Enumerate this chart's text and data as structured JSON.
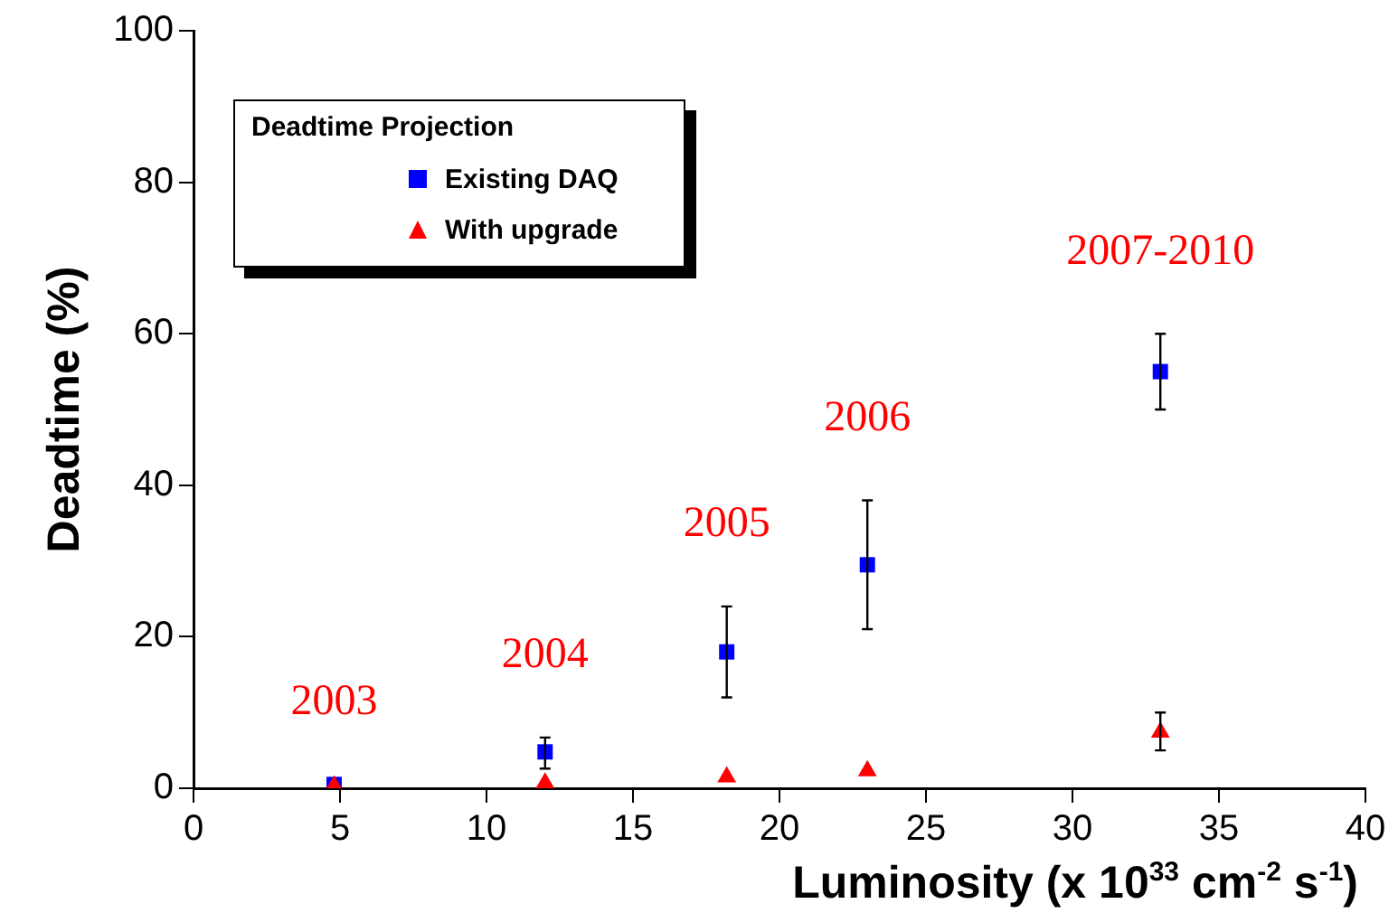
{
  "chart_data": {
    "type": "scatter",
    "legend_title": "Deadtime Projection",
    "xlabel": "Luminosity (x 10$^{33}$ cm$^{-2}$ s$^{-1}$)",
    "ylabel": "Deadtime (%)",
    "xlim": [
      0,
      40
    ],
    "xticks": [
      0,
      5,
      10,
      15,
      20,
      25,
      30,
      35,
      40
    ],
    "ylim": [
      0,
      100
    ],
    "yticks": [
      0,
      20,
      40,
      60,
      80,
      100
    ],
    "legend": "top left",
    "grid": false,
    "series": [
      {
        "name": "Existing DAQ",
        "color": "#0000ff",
        "marker": "square",
        "x": [
          4.8,
          12,
          18.2,
          23,
          33
        ],
        "values": [
          0.5,
          4.8,
          18,
          29.5,
          55
        ],
        "errors": [
          null,
          [
            2.6,
            6.7
          ],
          [
            12,
            24
          ],
          [
            21,
            38
          ],
          [
            50,
            60
          ]
        ]
      },
      {
        "name": "With upgrade",
        "color": "#ff0000",
        "marker": "triangle",
        "x": [
          4.8,
          12,
          18.2,
          23,
          33
        ],
        "values": [
          0.3,
          0.7,
          1.5,
          2.3,
          7.4
        ],
        "errors": [
          null,
          null,
          null,
          null,
          [
            5,
            10
          ]
        ]
      }
    ],
    "annotations": [
      "2003",
      "2004",
      "2005",
      "2006",
      "2007-2010"
    ]
  }
}
